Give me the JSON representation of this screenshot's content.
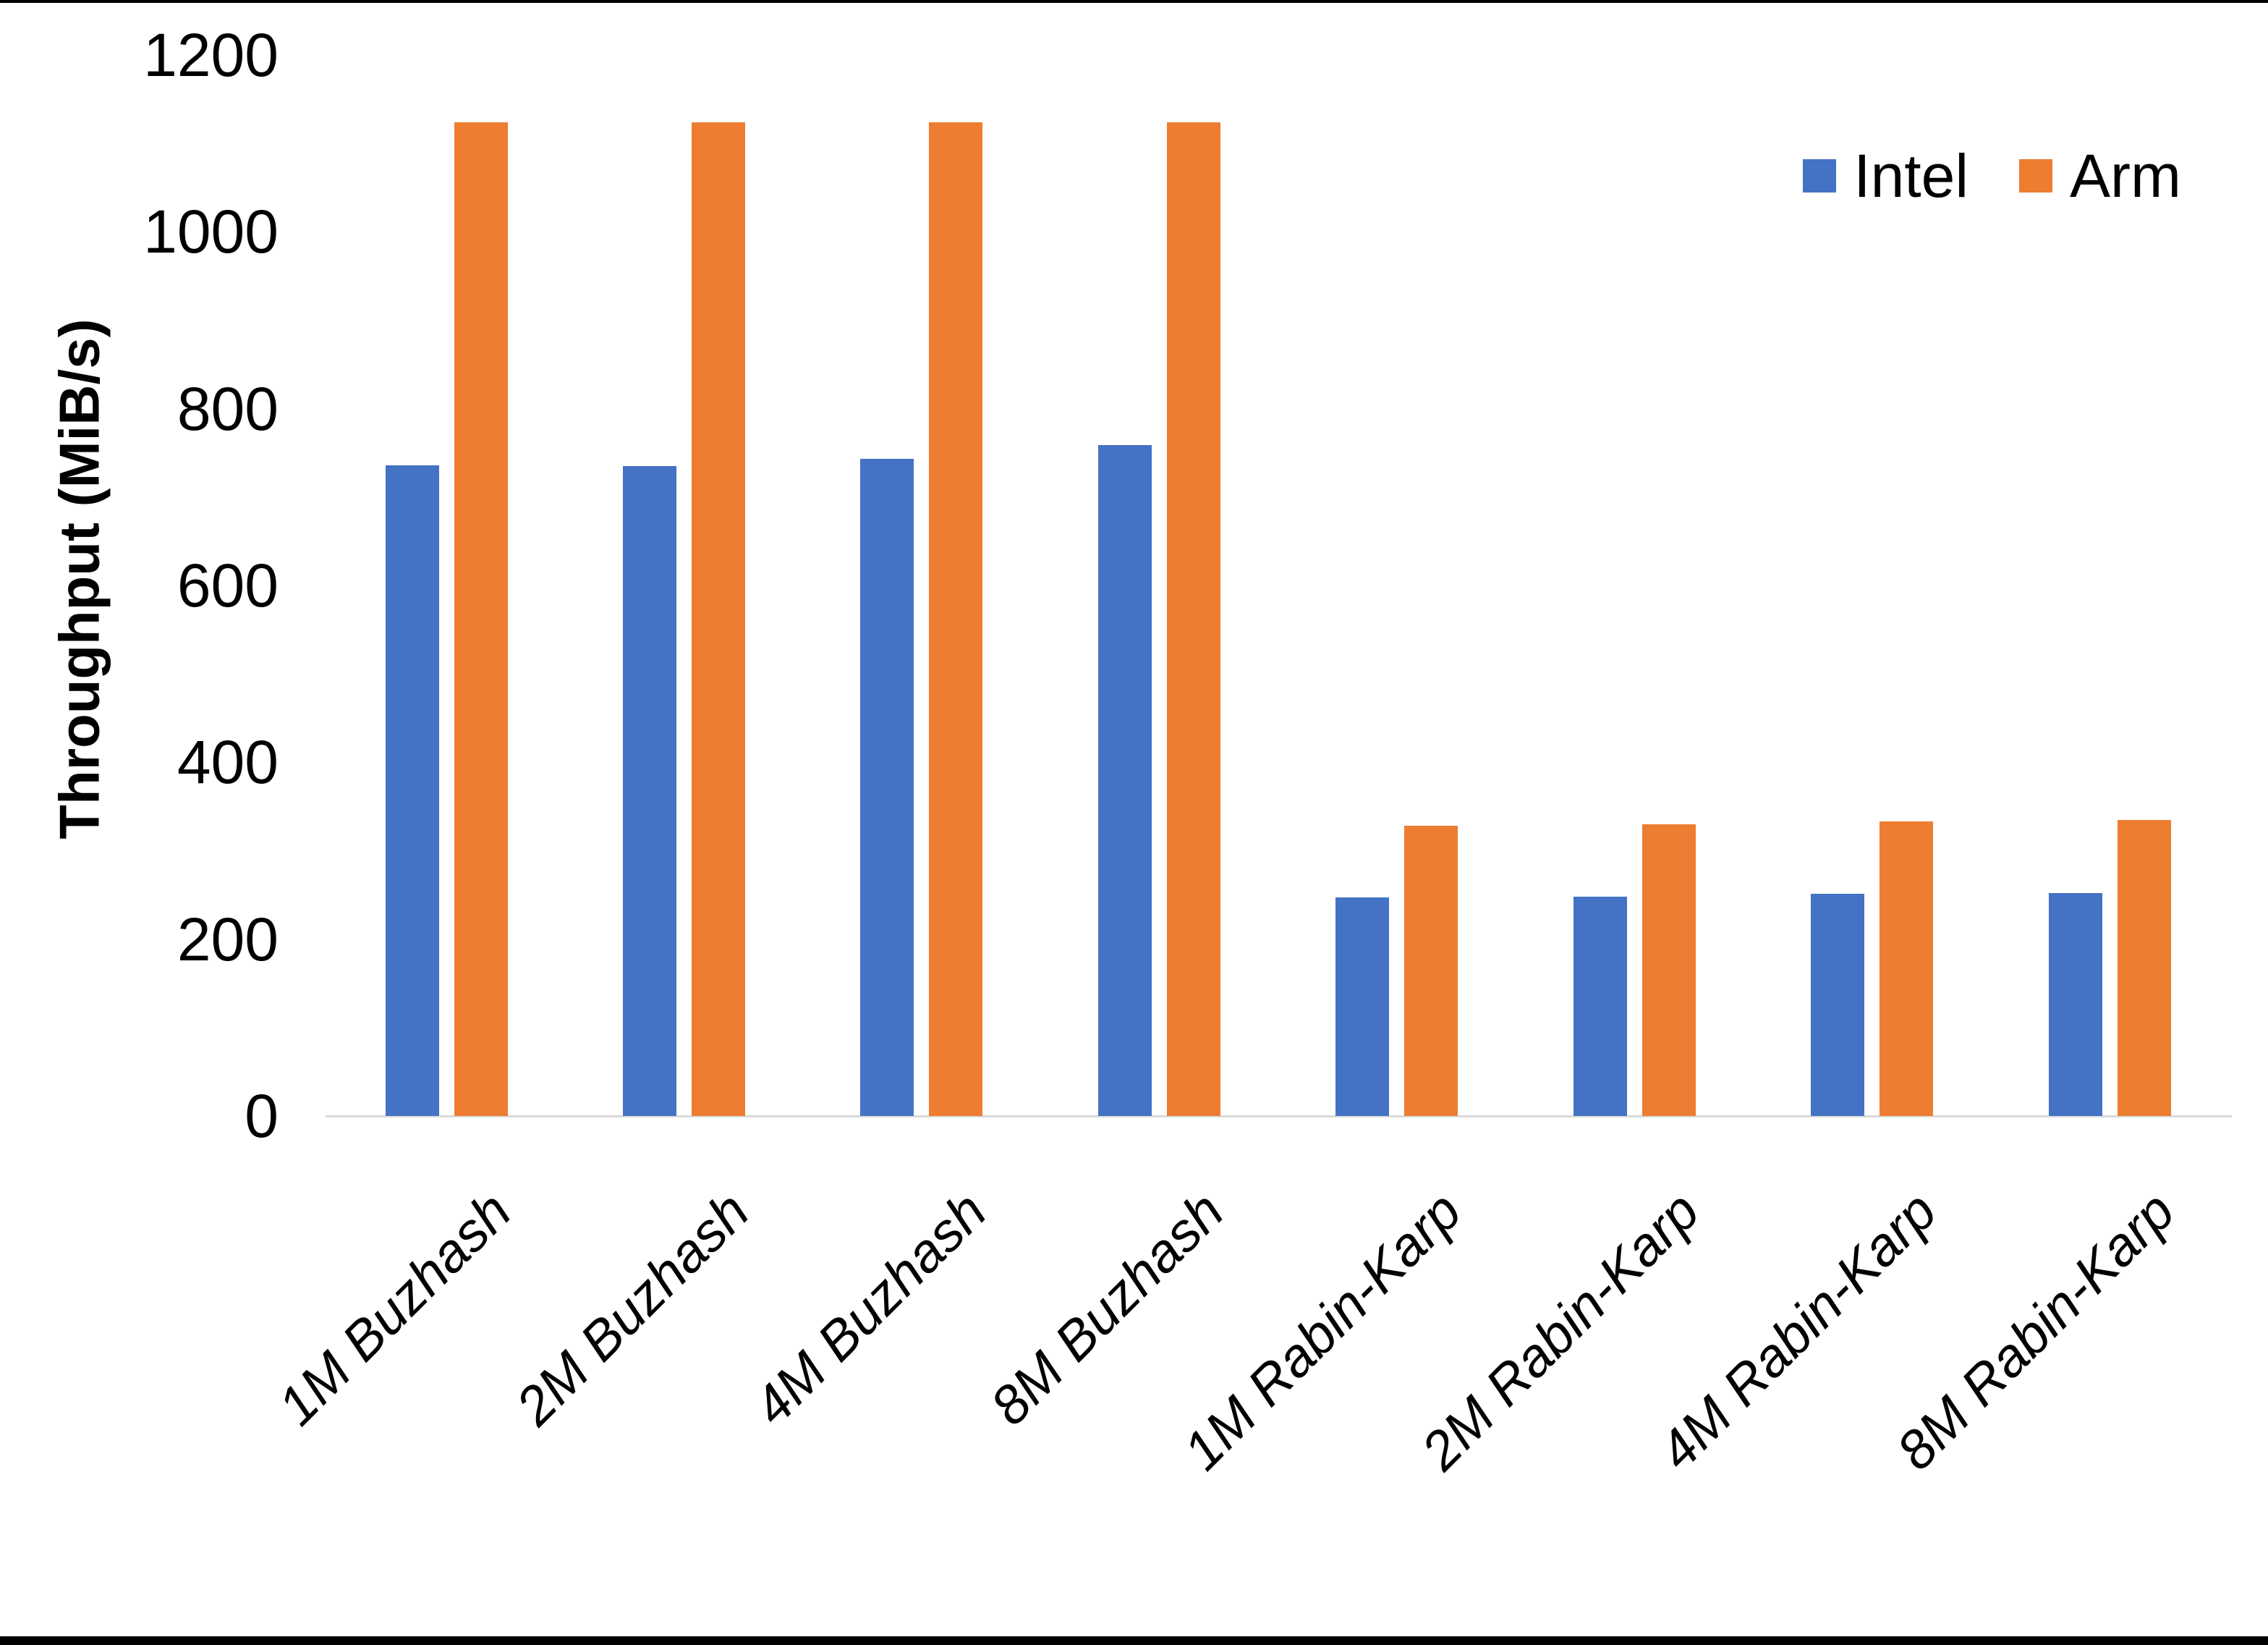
{
  "chart_data": {
    "type": "bar",
    "title": "",
    "xlabel": "",
    "ylabel": "Throughput (MiB/s)",
    "ylim": [
      0,
      1200
    ],
    "yticks": [
      0,
      200,
      400,
      600,
      800,
      1000,
      1200
    ],
    "grid": false,
    "legend_position": "top-right",
    "categories": [
      "1M Buzhash",
      "2M Buzhash",
      "4M Buzhash",
      "8M Buzhash",
      "1M Rabin-Karp",
      "2M Rabin-Karp",
      "4M Rabin-Karp",
      "8M Rabin-Karp"
    ],
    "series": [
      {
        "name": "Intel",
        "color": "#4472C4",
        "values": [
          736,
          735,
          743,
          759,
          247,
          248,
          251,
          252
        ]
      },
      {
        "name": "Arm",
        "color": "#ED7D31",
        "values": [
          1124,
          1124,
          1124,
          1124,
          328,
          330,
          333,
          335
        ]
      }
    ]
  },
  "colors": {
    "background": "#FFFFFF",
    "axis_line": "#D9D9D9",
    "text": "#000000",
    "frame_border": "#000000"
  }
}
